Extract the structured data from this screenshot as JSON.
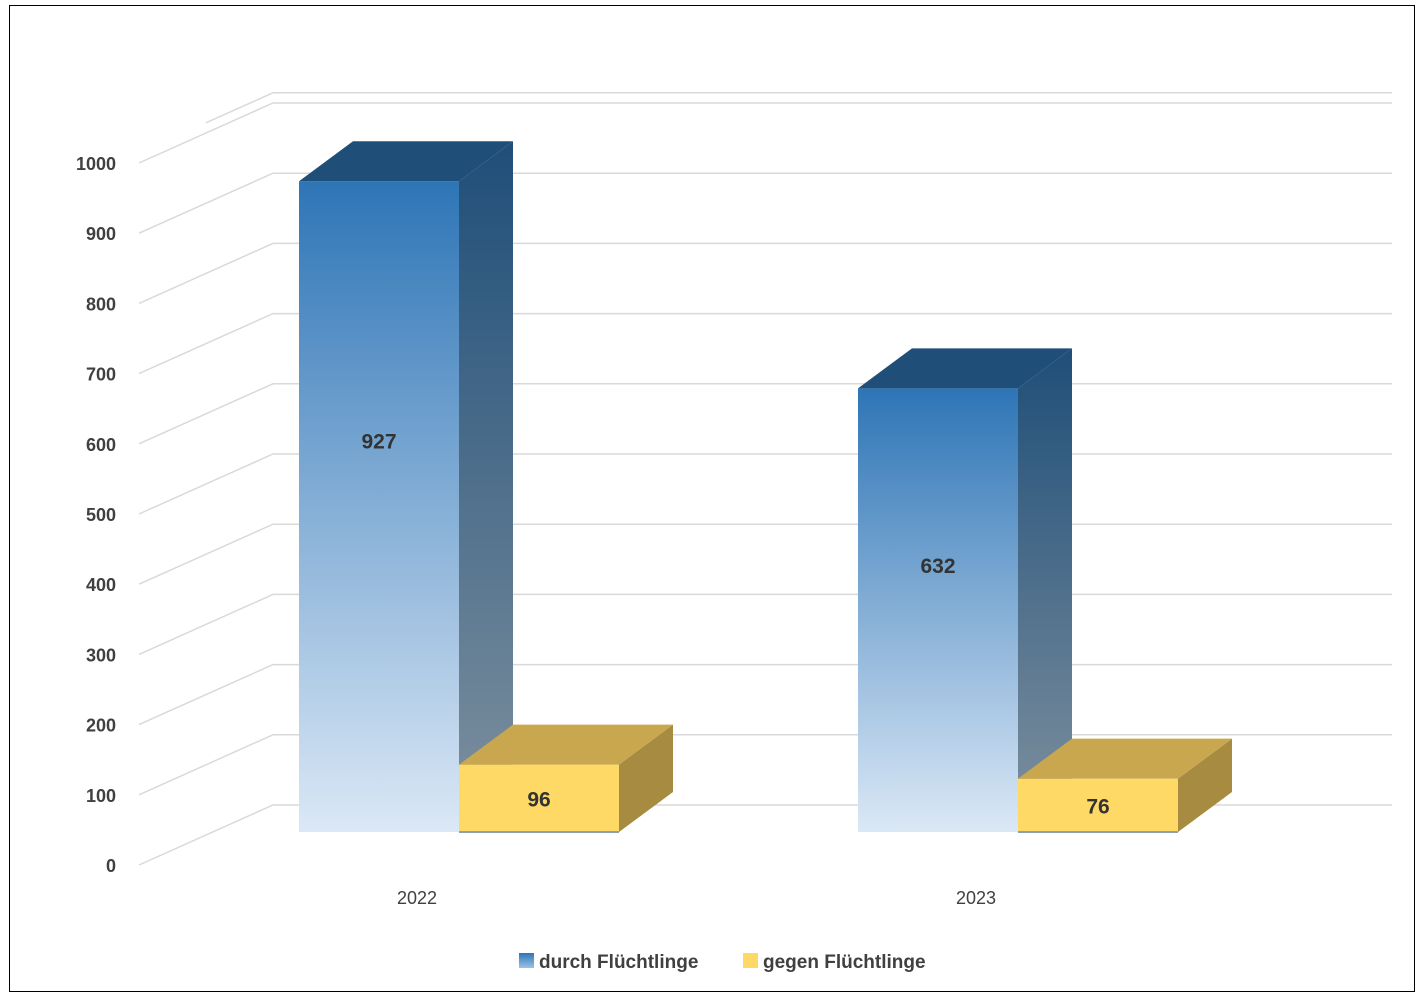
{
  "chart_data": {
    "type": "bar",
    "categories": [
      "2022",
      "2023"
    ],
    "series": [
      {
        "name": "durch Flüchtlinge",
        "values": [
          927,
          632
        ],
        "labels": [
          "927",
          "632"
        ]
      },
      {
        "name": "gegen Flüchtlinge",
        "values": [
          96,
          76
        ],
        "labels": [
          "96",
          "76"
        ]
      }
    ],
    "yticks": [
      "0",
      "100",
      "200",
      "300",
      "400",
      "500",
      "600",
      "700",
      "800",
      "900",
      "1000"
    ],
    "ylim": [
      0,
      1000
    ],
    "grid": true,
    "legend_position": "bottom",
    "colors": {
      "series1_top": "#2e75b6",
      "series1_bottom": "#dbe8f6",
      "series1_side_top": "#1f4e79",
      "series1_side_bottom": "#7f919f",
      "series2_front": "#ffd966",
      "series2_top": "#c9a74e",
      "series2_side": "#a68b40",
      "grid": "#d9d9d9",
      "text": "#404040"
    }
  }
}
